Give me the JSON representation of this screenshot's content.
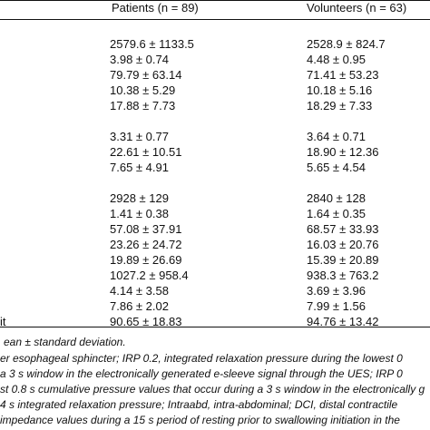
{
  "table": {
    "col_patients": "Patients (n = 89)",
    "col_volunteers": "Volunteers (n = 63)",
    "rows": [
      {
        "label": "",
        "patients": "2579.6 ± 1133.5",
        "volunteers": "2528.9 ± 824.7"
      },
      {
        "label": "",
        "patients": "3.98 ± 0.74",
        "volunteers": "4.48 ± 0.95"
      },
      {
        "label": "",
        "patients": "79.79 ± 63.14",
        "volunteers": "71.41 ± 53.23"
      },
      {
        "label": "",
        "patients": "10.38 ± 5.29",
        "volunteers": "10.18 ± 5.16"
      },
      {
        "label": "",
        "patients": "17.88 ± 7.73",
        "volunteers": "18.29 ± 7.33"
      },
      {
        "label": "",
        "patients": "3.31 ± 0.77",
        "volunteers": "3.64 ± 0.71"
      },
      {
        "label": "",
        "patients": "22.61 ± 10.51",
        "volunteers": "18.90 ± 12.36"
      },
      {
        "label": "",
        "patients": "7.65 ± 4.91",
        "volunteers": "5.65 ± 4.54"
      },
      {
        "label": "",
        "patients": "2928 ± 129",
        "volunteers": "2840 ± 128"
      },
      {
        "label": "",
        "patients": "1.41 ± 0.38",
        "volunteers": "1.64 ± 0.35"
      },
      {
        "label": "",
        "patients": "57.08 ± 37.91",
        "volunteers": "68.57 ± 33.93"
      },
      {
        "label": "",
        "patients": "23.26 ± 24.72",
        "volunteers": "16.03 ± 20.76"
      },
      {
        "label": "",
        "patients": "19.89 ± 26.69",
        "volunteers": "15.39 ± 20.89"
      },
      {
        "label": "",
        "patients": "1027.2 ± 958.4",
        "volunteers": "938.3 ± 763.2"
      },
      {
        "label": "",
        "patients": "4.14 ± 3.58",
        "volunteers": "3.69 ± 3.96"
      },
      {
        "label": "",
        "patients": "7.86 ± 2.02",
        "volunteers": "7.99 ± 1.56"
      },
      {
        "label": "it",
        "patients": "90.65 ± 18.83",
        "volunteers": "94.76 ± 13.42"
      }
    ]
  },
  "footnotes": [
    "ean ± standard deviation.",
    "er esophageal sphincter; IRP 0.2, integrated relaxation pressure during the lowest 0",
    " a 3 s window in the electronically generated e-sleeve signal through the UES; IRP 0",
    "st 0.8 s cumulative pressure values that occur during a 3 s window in the electronically g",
    " 4 s integrated relaxation pressure; Intraabd, intra-abdominal; DCI, distal contractile",
    " impedance values during a 15 s period of resting prior to swallowing initiation in the"
  ]
}
